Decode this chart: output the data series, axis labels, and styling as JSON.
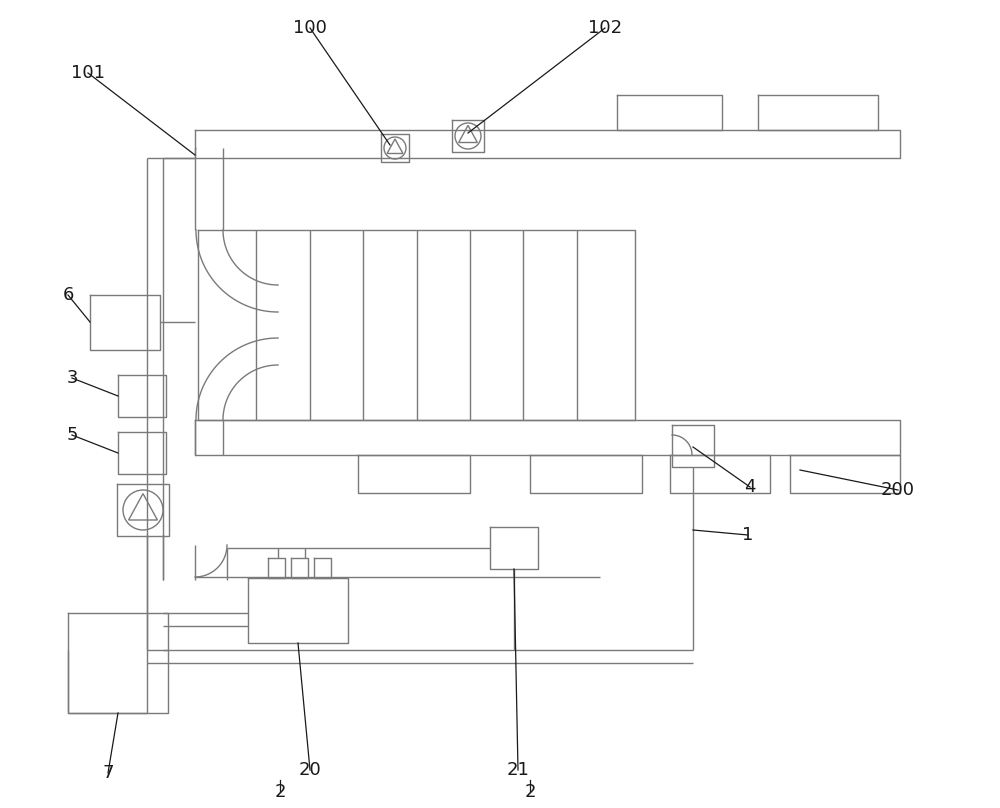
{
  "bg_color": "#ffffff",
  "lc": "#7a7a7a",
  "label_color": "#1a1a1a",
  "fig_width": 10.0,
  "fig_height": 8.08,
  "lw": 1.0
}
